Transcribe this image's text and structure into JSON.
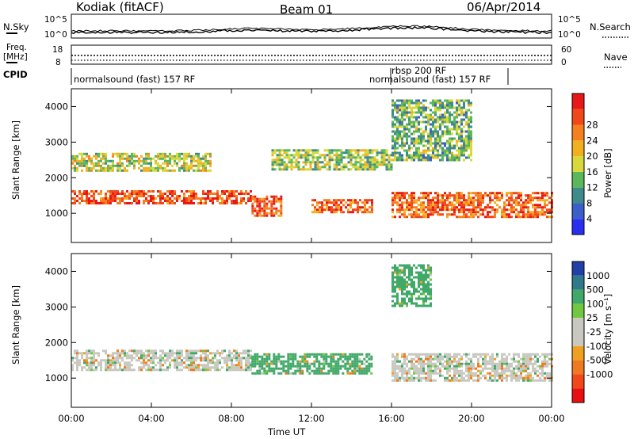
{
  "header": {
    "radar": "Kodiak (fitACF)",
    "beam": "Beam 01",
    "date": "06/Apr/2014"
  },
  "panels": {
    "nsky_label": "N.Sky",
    "nsearch_label": "N.Search",
    "freq_label_1": "Freq.",
    "freq_label_2": "[MHz]",
    "nave_label": "Nave",
    "cpid_label": "CPID",
    "nsky_ticks": [
      "10^5",
      "10^0"
    ],
    "nsearch_ticks": [
      "10^5",
      "10^0"
    ],
    "freq_ticks": [
      "18",
      "8"
    ],
    "nave_ticks": [
      "60",
      "0"
    ],
    "cpid_segments": [
      {
        "label": "normalsound (fast) 157 RF",
        "start": 0,
        "end": 16
      },
      {
        "label": "rbsp 200 RF",
        "start": 16,
        "end": 16.1
      },
      {
        "label": "normalsound (fast) 157 RF",
        "start": 16.1,
        "end": 21.8
      }
    ]
  },
  "axes": {
    "x_label": "Time UT",
    "x_ticks": [
      "00:00",
      "04:00",
      "08:00",
      "12:00",
      "16:00",
      "20:00",
      "00:00"
    ],
    "y_label": "Slant Range [km]",
    "y_ticks": [
      "1000",
      "2000",
      "3000",
      "4000"
    ]
  },
  "colorbars": {
    "power": {
      "label": "Power [dB]",
      "ticks": [
        "4",
        "8",
        "12",
        "16",
        "20",
        "24",
        "28"
      ],
      "colors": [
        "#2a2ef0",
        "#3a5fc8",
        "#3f8a8a",
        "#5ab85a",
        "#d8d83a",
        "#f2b020",
        "#f58020",
        "#f04818",
        "#e81818"
      ]
    },
    "velocity": {
      "label": "Velocity [m s⁻¹]",
      "ticks": [
        "1000",
        "500",
        "100",
        "25",
        "-25",
        "-100",
        "-500",
        "-1000"
      ],
      "colors": [
        "#2040a8",
        "#2e7a8a",
        "#40a868",
        "#70c840",
        "#c8c8c0",
        "#c8c8c0",
        "#f0a020",
        "#f07820",
        "#f04818",
        "#e81010"
      ]
    }
  },
  "chart_data": {
    "type": "heatmap",
    "x_range_hours": [
      0,
      24
    ],
    "y_range_km": [
      180,
      4500
    ],
    "power_bands": [
      {
        "start": 0,
        "end": 9,
        "range_km": [
          1250,
          1650
        ],
        "power_db": 28
      },
      {
        "start": 0,
        "end": 7,
        "range_km": [
          2200,
          2700
        ],
        "power_db": 16
      },
      {
        "start": 9,
        "end": 10.5,
        "range_km": [
          900,
          1500
        ],
        "power_db": 28
      },
      {
        "start": 12,
        "end": 15,
        "range_km": [
          1000,
          1400
        ],
        "power_db": 26
      },
      {
        "start": 10,
        "end": 16,
        "range_km": [
          2200,
          2800
        ],
        "power_db": 14
      },
      {
        "start": 16,
        "end": 24,
        "range_km": [
          900,
          1600
        ],
        "power_db": 26
      },
      {
        "start": 16,
        "end": 20,
        "range_km": [
          2500,
          4200
        ],
        "power_db": 12
      }
    ],
    "velocity_bands": [
      {
        "start": 0,
        "end": 9,
        "range_km": [
          1200,
          1800
        ],
        "velocity": 0
      },
      {
        "start": 9,
        "end": 15,
        "range_km": [
          1100,
          1700
        ],
        "velocity": 150
      },
      {
        "start": 16,
        "end": 24,
        "range_km": [
          900,
          1700
        ],
        "velocity": 0
      },
      {
        "start": 16,
        "end": 18,
        "range_km": [
          3000,
          4200
        ],
        "velocity": 200
      }
    ]
  }
}
